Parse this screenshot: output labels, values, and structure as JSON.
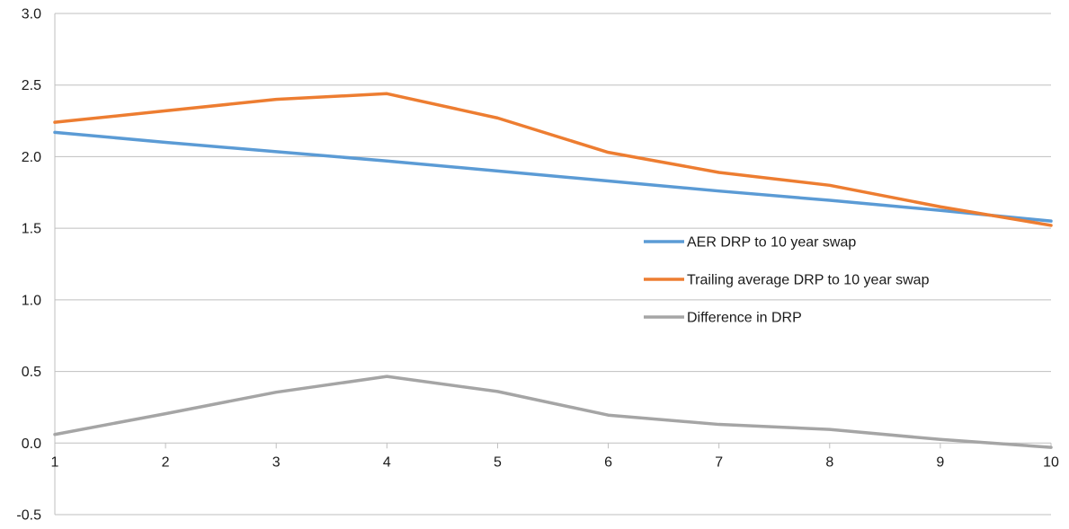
{
  "chart_data": {
    "type": "line",
    "x": [
      1,
      2,
      3,
      4,
      5,
      6,
      7,
      8,
      9,
      10
    ],
    "ylim": [
      -0.5,
      3.0
    ],
    "yticks": [
      "-0.5",
      "0.0",
      "0.5",
      "1.0",
      "1.5",
      "2.0",
      "2.5",
      "3.0"
    ],
    "xticks": [
      "1",
      "2",
      "3",
      "4",
      "5",
      "6",
      "7",
      "8",
      "9",
      "10"
    ],
    "grid": true,
    "legend_position": "center-right",
    "series": [
      {
        "name": "AER DRP to 10 year swap",
        "color": "#5b9bd5",
        "values": [
          2.17,
          2.1,
          2.035,
          1.97,
          1.9,
          1.83,
          1.76,
          1.695,
          1.625,
          1.55
        ]
      },
      {
        "name": "Trailing average DRP to 10 year swap",
        "color": "#ed7d31",
        "values": [
          2.24,
          2.32,
          2.4,
          2.44,
          2.27,
          2.03,
          1.89,
          1.8,
          1.65,
          1.52
        ]
      },
      {
        "name": "Difference in DRP",
        "color": "#a5a5a5",
        "values": [
          0.06,
          0.205,
          0.355,
          0.465,
          0.36,
          0.195,
          0.13,
          0.095,
          0.025,
          -0.03
        ]
      }
    ]
  }
}
